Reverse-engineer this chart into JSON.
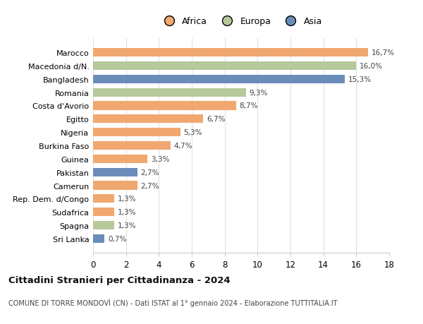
{
  "categories": [
    "Sri Lanka",
    "Spagna",
    "Sudafrica",
    "Rep. Dem. d/Congo",
    "Camerun",
    "Pakistan",
    "Guinea",
    "Burkina Faso",
    "Nigeria",
    "Egitto",
    "Costa d'Avorio",
    "Romania",
    "Bangladesh",
    "Macedonia d/N.",
    "Marocco"
  ],
  "values": [
    0.7,
    1.3,
    1.3,
    1.3,
    2.7,
    2.7,
    3.3,
    4.7,
    5.3,
    6.7,
    8.7,
    9.3,
    15.3,
    16.0,
    16.7
  ],
  "colors": [
    "#6b8cba",
    "#b5c99a",
    "#f0a870",
    "#f0a870",
    "#f0a870",
    "#6b8cba",
    "#f0a870",
    "#f0a870",
    "#f0a870",
    "#f0a870",
    "#f0a870",
    "#b5c99a",
    "#6b8cba",
    "#b5c99a",
    "#f0a870"
  ],
  "labels": [
    "0,7%",
    "1,3%",
    "1,3%",
    "1,3%",
    "2,7%",
    "2,7%",
    "3,3%",
    "4,7%",
    "5,3%",
    "6,7%",
    "8,7%",
    "9,3%",
    "15,3%",
    "16,0%",
    "16,7%"
  ],
  "legend_labels": [
    "Africa",
    "Europa",
    "Asia"
  ],
  "legend_colors": [
    "#f0a870",
    "#b5c99a",
    "#6b8cba"
  ],
  "title": "Cittadini Stranieri per Cittadinanza - 2024",
  "subtitle": "COMUNE DI TORRE MONDOVÌ (CN) - Dati ISTAT al 1° gennaio 2024 - Elaborazione TUTTITALIA.IT",
  "xlim": [
    0,
    18
  ],
  "xticks": [
    0,
    2,
    4,
    6,
    8,
    10,
    12,
    14,
    16,
    18
  ],
  "background_color": "#ffffff",
  "grid_color": "#e0e0e0"
}
